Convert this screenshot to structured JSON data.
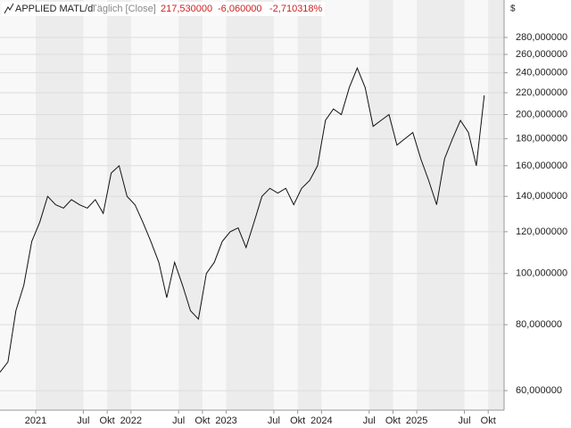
{
  "chart_data": {
    "type": "line",
    "title": "APPLIED MATL/d",
    "subtitle": "Täglich [Close]",
    "last": "217,530000",
    "change": "-6,060000",
    "change_pct": "-2,710318%",
    "currency": "$",
    "color": "#111111",
    "log_scale": true,
    "grid": true,
    "values": [
      65,
      68,
      85,
      95,
      115,
      125,
      140,
      135,
      133,
      138,
      135,
      133,
      138,
      130,
      155,
      160,
      140,
      135,
      125,
      115,
      105,
      90,
      105,
      95,
      85,
      82,
      100,
      105,
      115,
      120,
      122,
      112,
      125,
      140,
      145,
      142,
      145,
      135,
      145,
      150,
      160,
      195,
      205,
      200,
      225,
      245,
      225,
      190,
      195,
      200,
      175,
      180,
      185,
      165,
      150,
      135,
      165,
      180,
      195,
      185,
      160,
      217.53
    ],
    "xlim": [
      0,
      63.5
    ],
    "xticks": [
      {
        "value": 4.5,
        "label": "2021"
      },
      {
        "value": 10.5,
        "label": "Jul"
      },
      {
        "value": 13.5,
        "label": "Okt"
      },
      {
        "value": 16.5,
        "label": "2022"
      },
      {
        "value": 22.5,
        "label": "Jul"
      },
      {
        "value": 25.5,
        "label": "Okt"
      },
      {
        "value": 28.5,
        "label": "2023"
      },
      {
        "value": 34.5,
        "label": "Jul"
      },
      {
        "value": 37.5,
        "label": "Okt"
      },
      {
        "value": 40.5,
        "label": "2024"
      },
      {
        "value": 46.5,
        "label": "Jul"
      },
      {
        "value": 49.5,
        "label": "Okt"
      },
      {
        "value": 52.5,
        "label": "2025"
      },
      {
        "value": 58.5,
        "label": "Jul"
      },
      {
        "value": 61.5,
        "label": "Okt"
      }
    ],
    "ylim": [
      55.1,
      305
    ],
    "yticks": [
      {
        "value": 60,
        "label": "60,000000"
      },
      {
        "value": 80,
        "label": "80,000000"
      },
      {
        "value": 100,
        "label": "100,000000"
      },
      {
        "value": 120,
        "label": "120,000000"
      },
      {
        "value": 140,
        "label": "140,000000"
      },
      {
        "value": 160,
        "label": "160,000000"
      },
      {
        "value": 180,
        "label": "180,000000"
      },
      {
        "value": 200,
        "label": "200,000000"
      },
      {
        "value": 220,
        "label": "220,000000"
      },
      {
        "value": 240,
        "label": "240,000000"
      },
      {
        "value": 260,
        "label": "260,000000"
      },
      {
        "value": 280,
        "label": "280,000000"
      }
    ]
  }
}
